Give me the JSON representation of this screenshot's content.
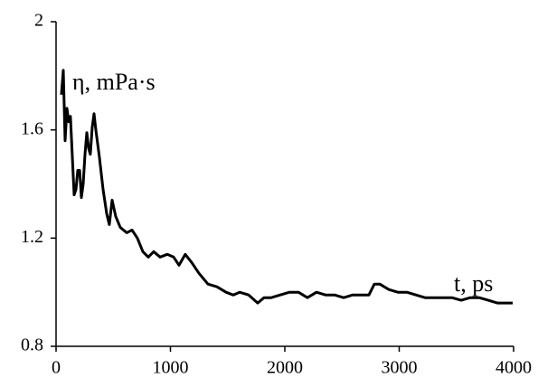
{
  "chart_data": {
    "type": "line",
    "x_label": "t, ps",
    "y_label": "η, mPa·s",
    "x": [
      47,
      63,
      79,
      95,
      111,
      126,
      142,
      158,
      174,
      190,
      206,
      221,
      237,
      253,
      269,
      285,
      300,
      316,
      332,
      348,
      379,
      411,
      443,
      466,
      490,
      522,
      561,
      617,
      664,
      711,
      759,
      806,
      854,
      909,
      972,
      1028,
      1075,
      1130,
      1186,
      1249,
      1328,
      1407,
      1486,
      1549,
      1605,
      1684,
      1763,
      1818,
      1881,
      1960,
      2040,
      2119,
      2198,
      2277,
      2356,
      2435,
      2514,
      2593,
      2672,
      2735,
      2783,
      2830,
      2909,
      2988,
      3067,
      3146,
      3225,
      3304,
      3383,
      3462,
      3542,
      3621,
      3700,
      3779,
      3858,
      3937,
      3992
    ],
    "values": [
      1.73,
      1.82,
      1.56,
      1.68,
      1.63,
      1.65,
      1.5,
      1.36,
      1.38,
      1.45,
      1.45,
      1.35,
      1.4,
      1.51,
      1.59,
      1.53,
      1.51,
      1.61,
      1.66,
      1.6,
      1.5,
      1.38,
      1.29,
      1.25,
      1.34,
      1.28,
      1.24,
      1.22,
      1.23,
      1.2,
      1.15,
      1.13,
      1.15,
      1.13,
      1.14,
      1.13,
      1.1,
      1.14,
      1.11,
      1.07,
      1.03,
      1.02,
      1.0,
      0.99,
      1.0,
      0.99,
      0.96,
      0.98,
      0.98,
      0.99,
      1.0,
      1.0,
      0.98,
      1.0,
      0.99,
      0.99,
      0.98,
      0.99,
      0.99,
      0.99,
      1.03,
      1.03,
      1.01,
      1.0,
      1.0,
      0.99,
      0.98,
      0.98,
      0.98,
      0.98,
      0.97,
      0.98,
      0.98,
      0.97,
      0.96,
      0.96,
      0.96
    ],
    "color": "#000000",
    "xlim": [
      0,
      4000
    ],
    "ylim": [
      0.8,
      2
    ],
    "xticks": [
      0,
      1000,
      2000,
      3000,
      4000
    ],
    "yticks": [
      0.8,
      1.2,
      1.6,
      2
    ]
  }
}
